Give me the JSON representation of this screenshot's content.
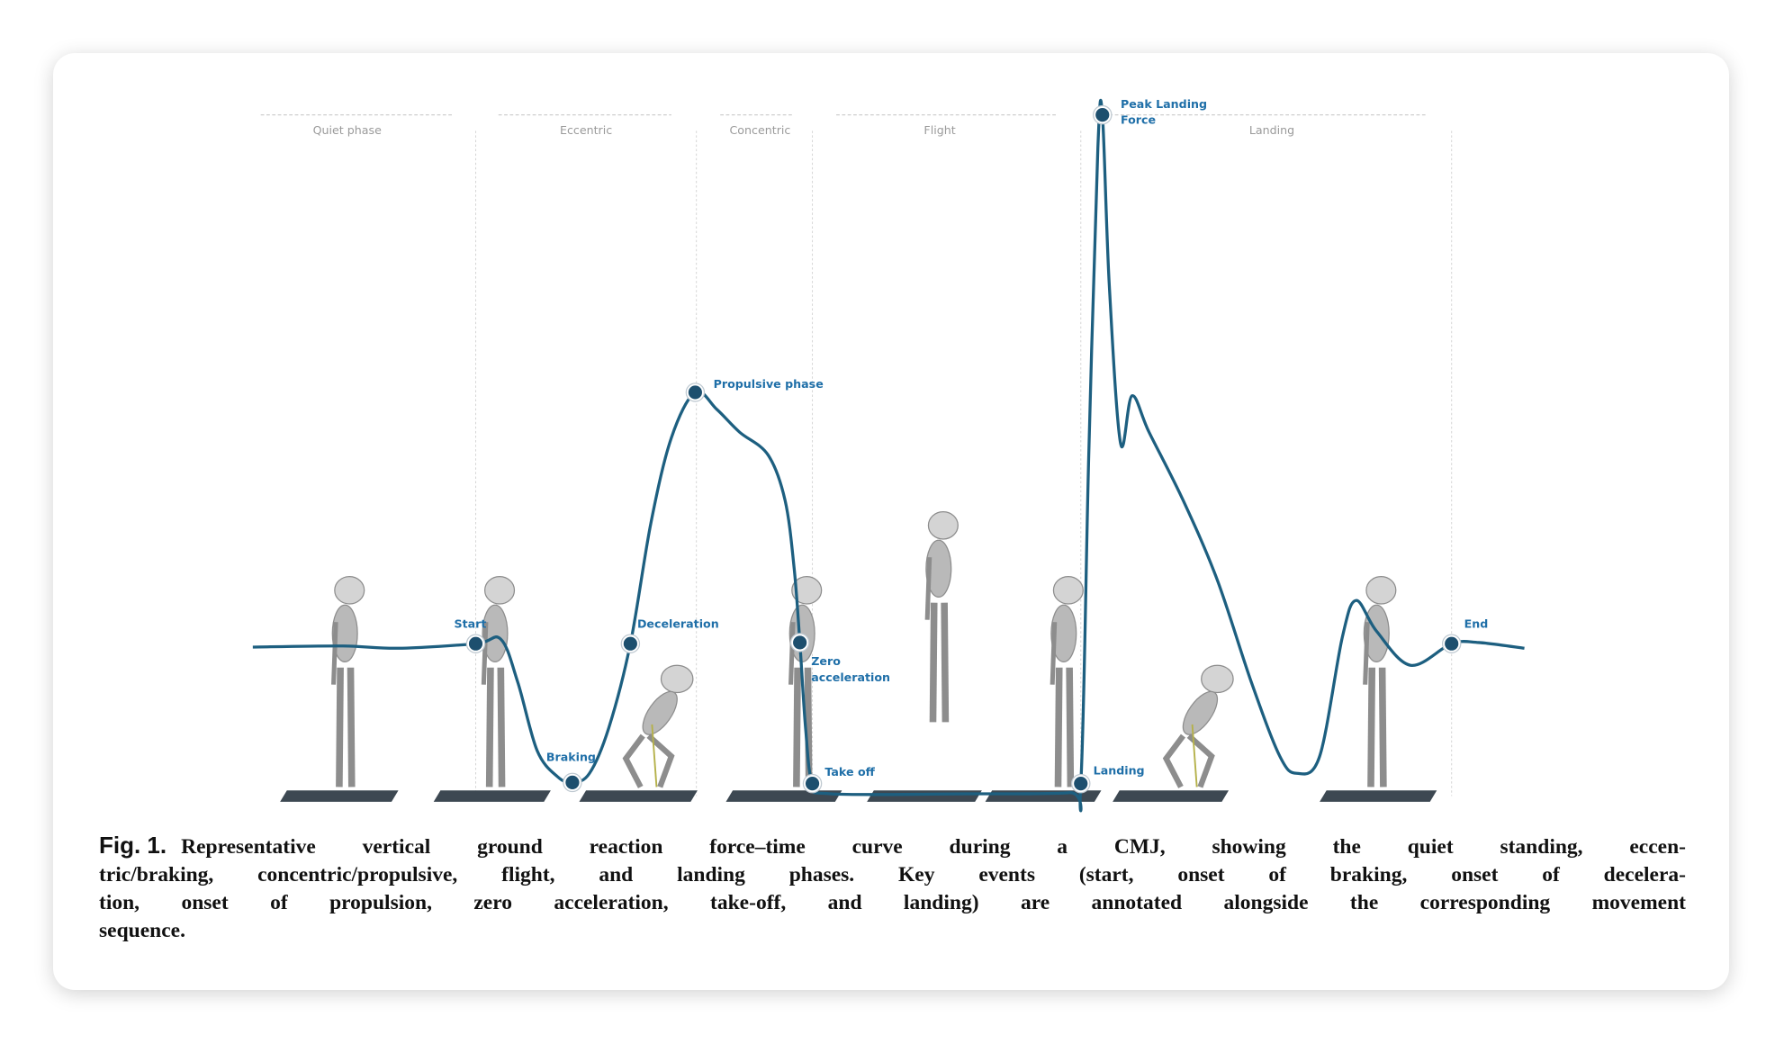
{
  "figure": {
    "phases": [
      "Quiet phase",
      "Eccentric",
      "Concentric",
      "Flight",
      "Landing"
    ],
    "events": {
      "start": [
        "Start"
      ],
      "braking": [
        "Braking"
      ],
      "deceleration": [
        "Deceleration"
      ],
      "propulsive": [
        "Propulsive phase"
      ],
      "zero_acceleration": [
        "Zero",
        "acceleration"
      ],
      "take_off": [
        "Take off"
      ],
      "landing": [
        "Landing"
      ],
      "peak": [
        "Peak Landing",
        "Force"
      ],
      "end": [
        "End"
      ]
    },
    "caption": {
      "label": "Fig. 1.",
      "lines": [
        "Representative vertical ground reaction force–time curve during a CMJ, showing the quiet standing, eccen-",
        "tric/braking, concentric/propulsive, flight, and landing phases. Key events (start, onset of braking, onset of decelera-",
        "tion, onset of propulsion, zero acceleration, take-off, and landing) are annotated alongside the corresponding movement",
        "sequence."
      ]
    }
  }
}
